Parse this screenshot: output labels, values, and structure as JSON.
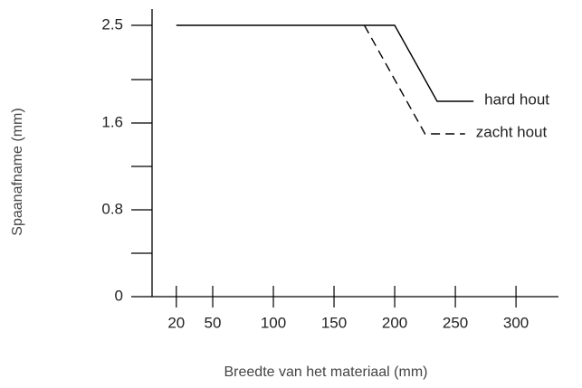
{
  "chart_data": {
    "type": "line",
    "x_label": "Breedte van het materiaal (mm)",
    "y_label": "Spaanafname (mm)",
    "xlim": [
      0,
      335
    ],
    "xticks": [
      20,
      50,
      100,
      150,
      200,
      250,
      300
    ],
    "ylim": [
      0,
      2.5
    ],
    "yticks": [
      0,
      0.8,
      1.6,
      2.5
    ],
    "yminorticks": [
      0.4,
      1.2,
      2.0
    ],
    "series": [
      {
        "name": "hard hout",
        "color": "#000000",
        "dash": false,
        "x": [
          20,
          200,
          235,
          265
        ],
        "values": [
          2.5,
          2.5,
          1.8,
          1.8
        ]
      },
      {
        "name": "zacht hout",
        "color": "#000000",
        "dash": true,
        "x": [
          175,
          225,
          258
        ],
        "values": [
          2.5,
          1.5,
          1.5
        ]
      }
    ]
  }
}
